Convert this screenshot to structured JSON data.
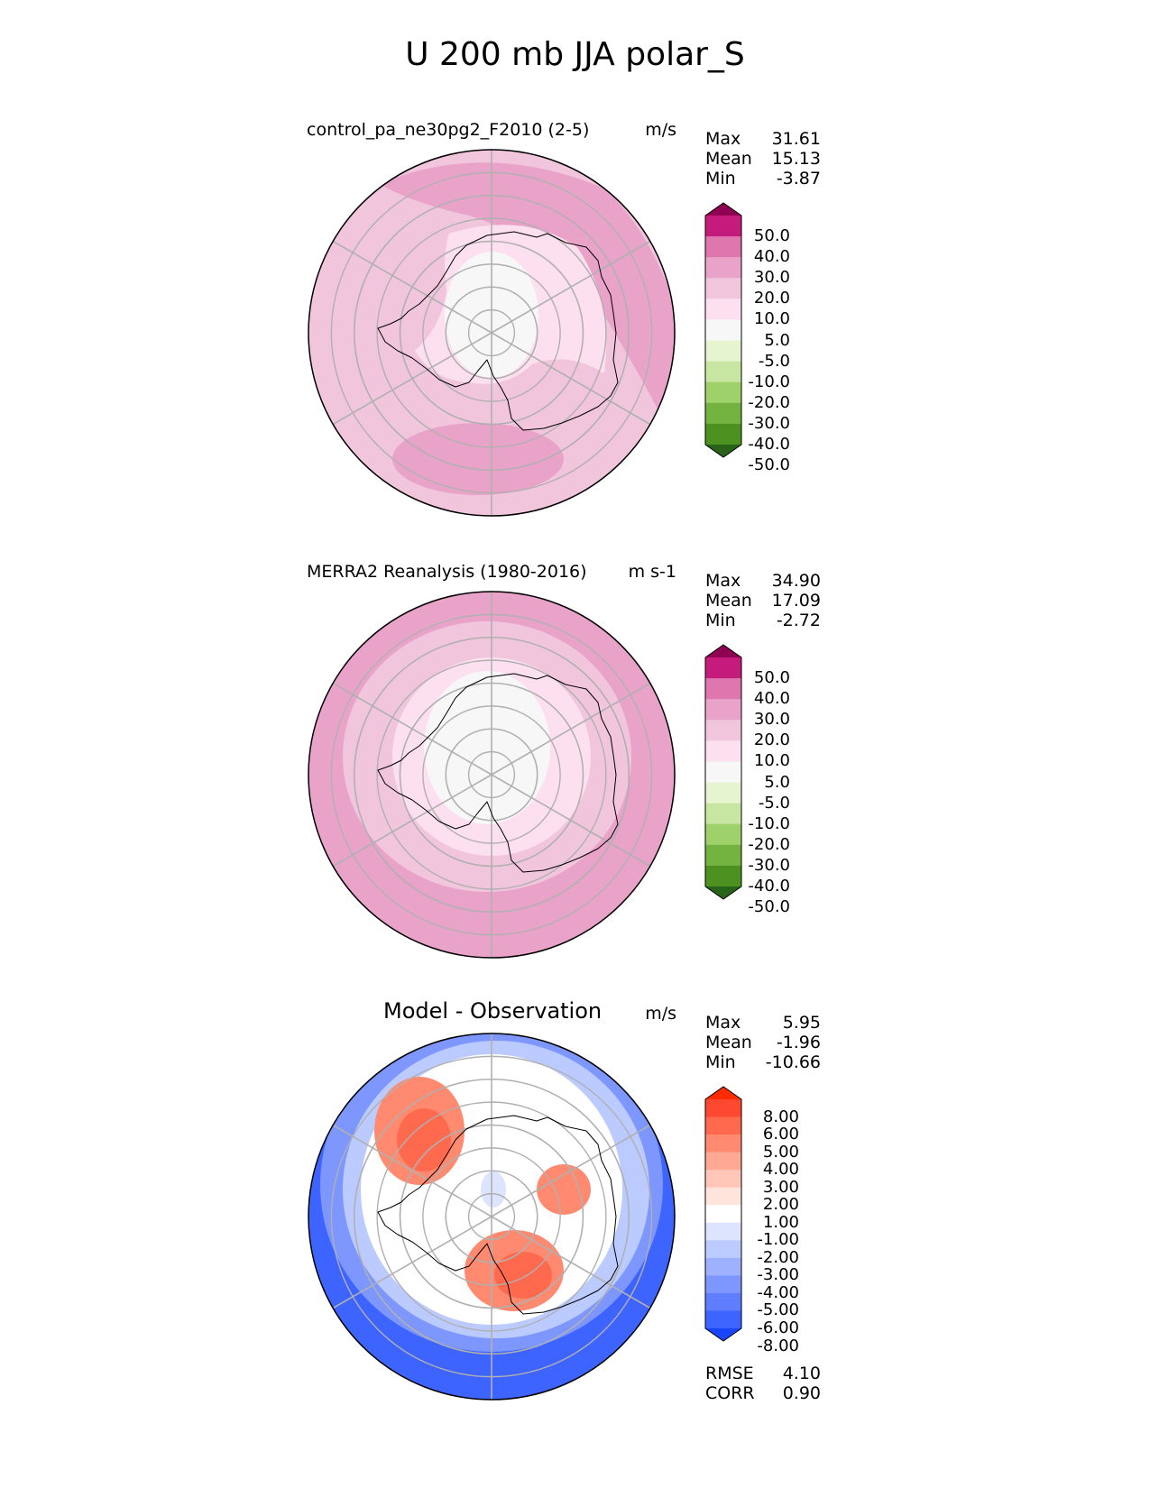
{
  "figure": {
    "title": "U 200 mb JJA polar_S"
  },
  "chart_data": [
    {
      "type": "heatmap",
      "projection": "south-polar-stereographic",
      "title": "control_pa_ne30pg2_F2010 (2-5)",
      "units": "m/s",
      "stats": {
        "max_label": "Max",
        "max": "31.61",
        "mean_label": "Mean",
        "mean": "15.13",
        "min_label": "Min",
        "min": "-3.87"
      },
      "colorbar": {
        "levels": [
          "50.0",
          "40.0",
          "30.0",
          "20.0",
          "10.0",
          "5.0",
          "-5.0",
          "-10.0",
          "-20.0",
          "-30.0",
          "-40.0",
          "-50.0"
        ],
        "colors": [
          "#8e0152",
          "#c51b7d",
          "#de77ae",
          "#e9a3c9",
          "#f1c6dd",
          "#fde0ef",
          "#f7f7f7",
          "#e6f5d0",
          "#c7e6a2",
          "#9fd16a",
          "#74b33f",
          "#4d9221",
          "#276419"
        ]
      },
      "field": {
        "background": "#f1c6dd",
        "band_high": "#e9a3c9",
        "core": "#fde0ef",
        "pole": "#f7f7f7"
      }
    },
    {
      "type": "heatmap",
      "projection": "south-polar-stereographic",
      "title": "MERRA2 Reanalysis (1980-2016)",
      "units": "m s-1",
      "stats": {
        "max_label": "Max",
        "max": "34.90",
        "mean_label": "Mean",
        "mean": "17.09",
        "min_label": "Min",
        "min": "-2.72"
      },
      "colorbar": {
        "levels": [
          "50.0",
          "40.0",
          "30.0",
          "20.0",
          "10.0",
          "5.0",
          "-5.0",
          "-10.0",
          "-20.0",
          "-30.0",
          "-40.0",
          "-50.0"
        ],
        "colors": [
          "#8e0152",
          "#c51b7d",
          "#de77ae",
          "#e9a3c9",
          "#f1c6dd",
          "#fde0ef",
          "#f7f7f7",
          "#e6f5d0",
          "#c7e6a2",
          "#9fd16a",
          "#74b33f",
          "#4d9221",
          "#276419"
        ]
      },
      "field": {
        "background": "#e9a3c9",
        "band_high": "#de77ae",
        "core": "#f1c6dd",
        "pole": "#f7f7f7"
      }
    },
    {
      "type": "heatmap",
      "projection": "south-polar-stereographic",
      "title": "Model - Observation",
      "units": "m/s",
      "stats": {
        "max_label": "Max",
        "max": "5.95",
        "mean_label": "Mean",
        "mean": "-1.96",
        "min_label": "Min",
        "min": "-10.66"
      },
      "colorbar": {
        "levels": [
          "8.00",
          "6.00",
          "5.00",
          "4.00",
          "3.00",
          "2.00",
          "1.00",
          "-1.00",
          "-2.00",
          "-3.00",
          "-4.00",
          "-5.00",
          "-6.00",
          "-8.00"
        ],
        "colors": [
          "#ff2a00",
          "#ff4830",
          "#ff6a4f",
          "#ff8a70",
          "#ffa994",
          "#ffc7b8",
          "#ffe4dc",
          "#ffffff",
          "#dce4ff",
          "#bccbff",
          "#9db1ff",
          "#7d97ff",
          "#5e7eff",
          "#3e64ff",
          "#1a45ff"
        ]
      },
      "metrics": {
        "rmse_label": "RMSE",
        "rmse": "4.10",
        "corr_label": "CORR",
        "corr": "0.90"
      },
      "field": {
        "background": "#ffffff",
        "far": "#3e64ff",
        "mid": "#7d97ff",
        "near": "#bccbff",
        "pos": "#ff8a70",
        "pos_strong": "#ff6a4f"
      }
    }
  ]
}
